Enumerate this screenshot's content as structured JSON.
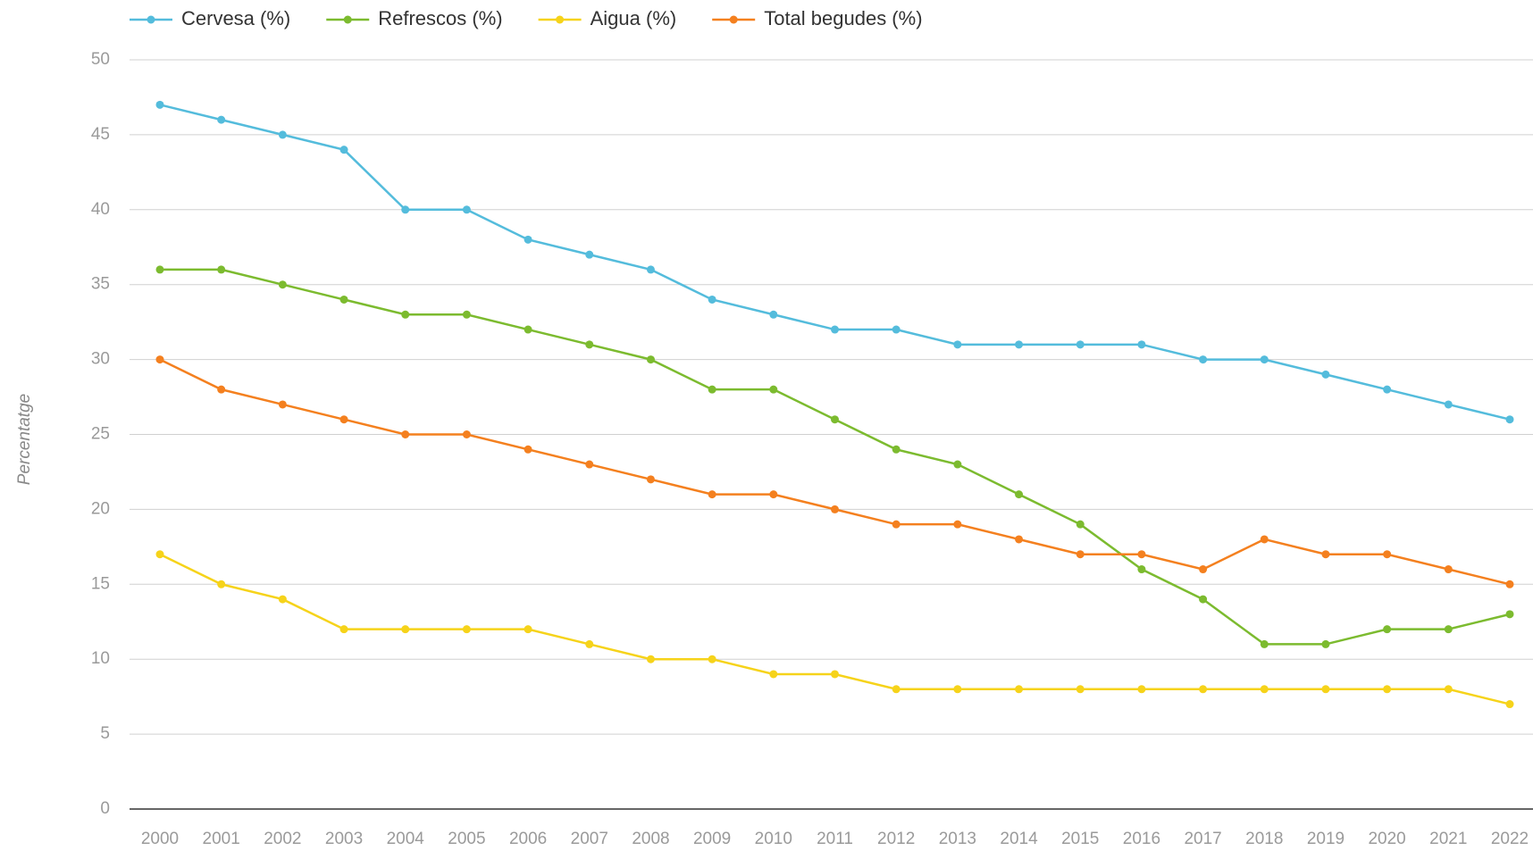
{
  "chart_data": {
    "type": "line",
    "y_label": "Percentatge",
    "categories": [
      "2000",
      "2001",
      "2002",
      "2003",
      "2004",
      "2005",
      "2006",
      "2007",
      "2008",
      "2009",
      "2010",
      "2011",
      "2012",
      "2013",
      "2014",
      "2015",
      "2016",
      "2017",
      "2018",
      "2019",
      "2020",
      "2021",
      "2022"
    ],
    "series": [
      {
        "name": "Cervesa (%)",
        "color": "#54bcdc",
        "values": [
          47,
          46,
          45,
          44,
          40,
          40,
          38,
          37,
          36,
          34,
          33,
          32,
          32,
          31,
          31,
          31,
          31,
          30,
          30,
          29,
          28,
          27,
          26
        ]
      },
      {
        "name": "Refrescos (%)",
        "color": "#7cbb2f",
        "values": [
          36,
          36,
          35,
          34,
          33,
          33,
          32,
          31,
          30,
          28,
          28,
          26,
          24,
          23,
          21,
          19,
          16,
          14,
          11,
          11,
          12,
          12,
          13
        ]
      },
      {
        "name": "Aigua (%)",
        "color": "#f6d31a",
        "values": [
          17,
          15,
          14,
          12,
          12,
          12,
          12,
          11,
          10,
          10,
          9,
          9,
          8,
          8,
          8,
          8,
          8,
          8,
          8,
          8,
          8,
          8,
          7
        ]
      },
      {
        "name": "Total begudes (%)",
        "color": "#f4801f",
        "values": [
          30,
          28,
          27,
          26,
          25,
          25,
          24,
          23,
          22,
          21,
          21,
          20,
          19,
          19,
          18,
          17,
          17,
          16,
          18,
          17,
          17,
          16,
          15
        ]
      }
    ],
    "ylim": [
      0,
      50
    ],
    "yticks": [
      0,
      5,
      10,
      15,
      20,
      25,
      30,
      35,
      40,
      45,
      50
    ],
    "grid": true,
    "legend": "top-left"
  }
}
